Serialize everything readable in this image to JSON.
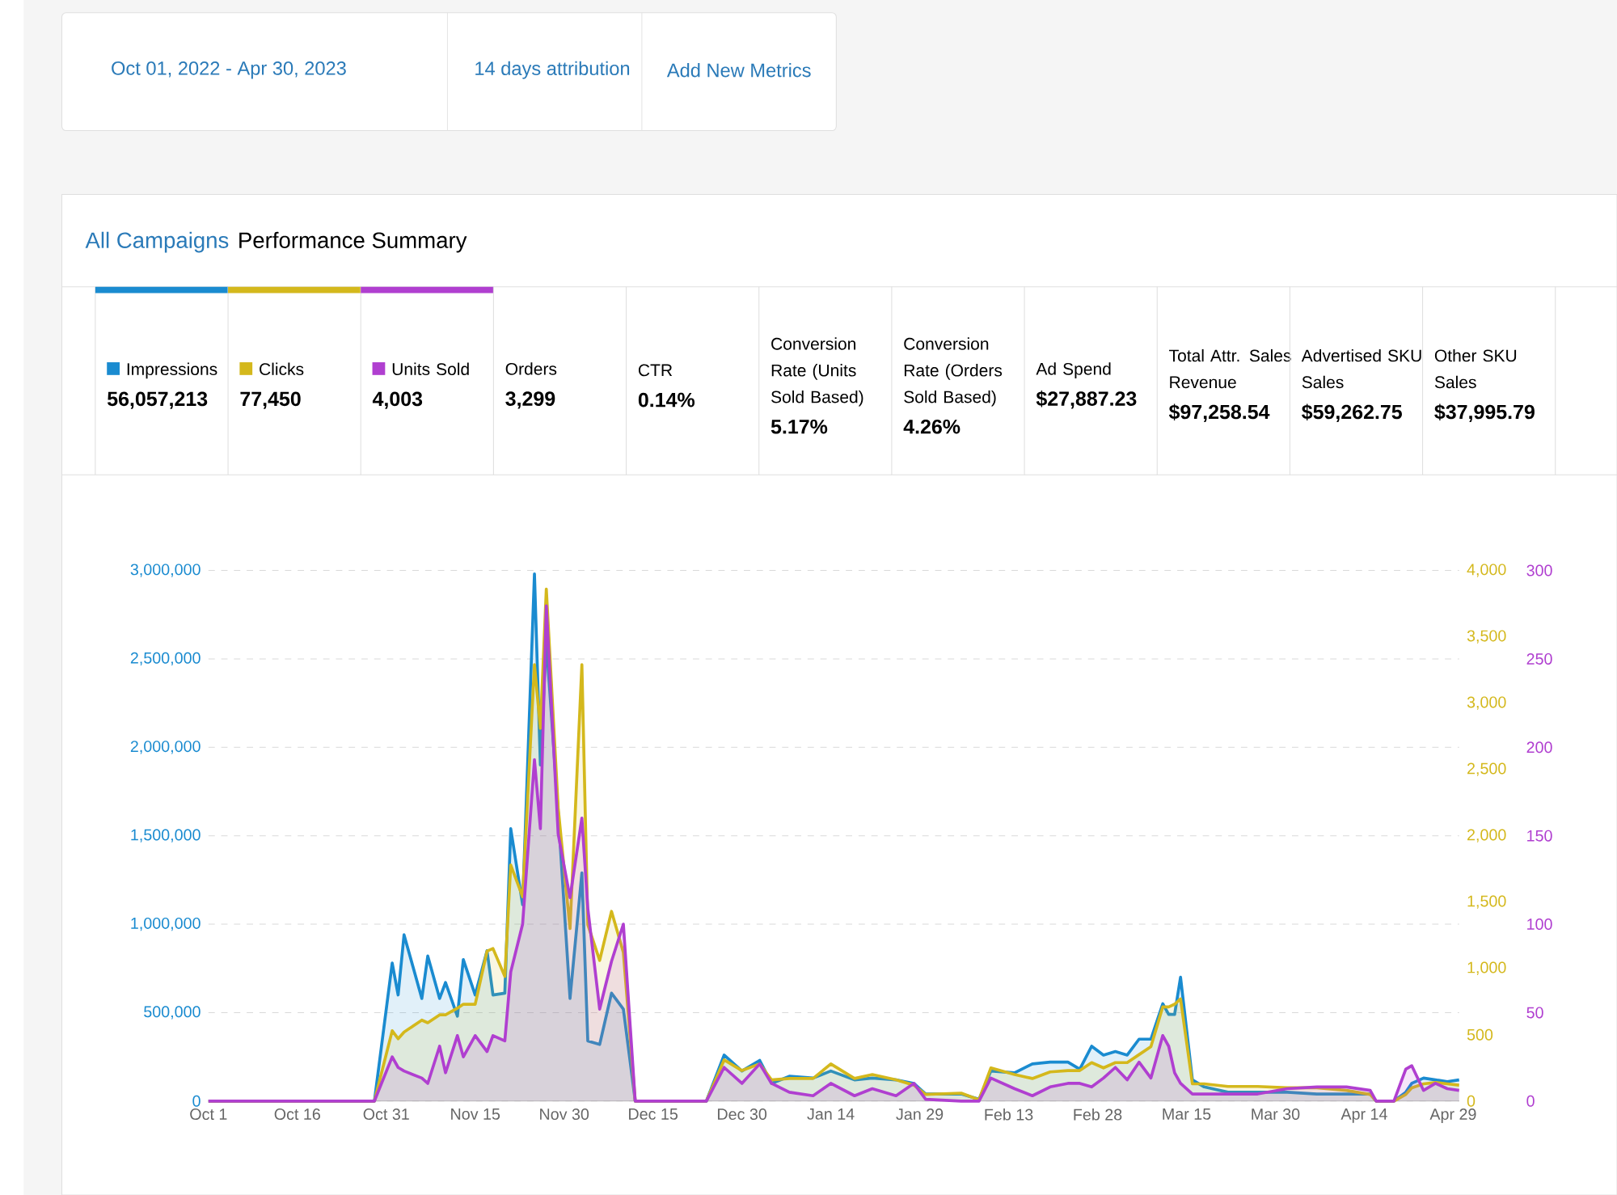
{
  "chart_data": {
    "type": "area",
    "title": "All Campaigns",
    "subtitle": "Performance Summary",
    "annotations": [
      "Oct 01, 2022 - Apr 30, 2023",
      "14 days attribution",
      "Add New Metrics",
      "56,057,213",
      "77,450",
      "4,003",
      "Orders",
      "3,299",
      "CTR",
      "0.14%",
      "Conversion Rate (Units Sold Based)",
      "5.17%",
      "Conversion Rate (Orders Sold Based)",
      "4.26%",
      "Ad Spend",
      "$27,887.23",
      "Total Attr. Sales Revenue",
      "$97,258.54",
      "Advertised SKU Sales",
      "$59,262.75",
      "Other SKU Sales",
      "$37,995.79"
    ],
    "x": [
      "2022-10-01",
      "2022-10-29",
      "2022-11-01",
      "2022-11-02",
      "2022-11-03",
      "2022-11-06",
      "2022-11-07",
      "2022-11-09",
      "2022-11-10",
      "2022-11-12",
      "2022-11-13",
      "2022-11-15",
      "2022-11-17",
      "2022-11-18",
      "2022-11-20",
      "2022-11-21",
      "2022-11-23",
      "2022-11-25",
      "2022-11-26",
      "2022-11-27",
      "2022-11-29",
      "2022-12-01",
      "2022-12-03",
      "2022-12-04",
      "2022-12-06",
      "2022-12-08",
      "2022-12-10",
      "2022-12-12",
      "2022-12-24",
      "2022-12-27",
      "2022-12-30",
      "2023-01-02",
      "2023-01-04",
      "2023-01-07",
      "2023-01-11",
      "2023-01-14",
      "2023-01-18",
      "2023-01-21",
      "2023-01-25",
      "2023-01-28",
      "2023-01-30",
      "2023-02-05",
      "2023-02-08",
      "2023-02-10",
      "2023-02-14",
      "2023-02-17",
      "2023-02-20",
      "2023-02-23",
      "2023-02-25",
      "2023-02-27",
      "2023-03-01",
      "2023-03-03",
      "2023-03-05",
      "2023-03-07",
      "2023-03-09",
      "2023-03-11",
      "2023-03-12",
      "2023-03-13",
      "2023-03-14",
      "2023-03-16",
      "2023-03-18",
      "2023-03-22",
      "2023-03-27",
      "2023-04-01",
      "2023-04-06",
      "2023-04-11",
      "2023-04-15",
      "2023-04-16",
      "2023-04-19",
      "2023-04-21",
      "2023-04-22",
      "2023-04-24",
      "2023-04-26",
      "2023-04-28",
      "2023-04-30"
    ],
    "series": [
      {
        "name": "Impressions",
        "color": "#1a8bd0",
        "values": [
          0,
          0,
          780000,
          600000,
          940000,
          580000,
          820000,
          580000,
          670000,
          480000,
          800000,
          600000,
          850000,
          600000,
          610000,
          1540000,
          1110000,
          2980000,
          1900000,
          2600000,
          1630000,
          580000,
          1290000,
          340000,
          320000,
          610000,
          520000,
          0,
          0,
          260000,
          170000,
          230000,
          100000,
          140000,
          130000,
          170000,
          120000,
          130000,
          120000,
          100000,
          40000,
          40000,
          10000,
          170000,
          160000,
          210000,
          220000,
          220000,
          180000,
          310000,
          260000,
          280000,
          260000,
          350000,
          350000,
          550000,
          490000,
          490000,
          700000,
          120000,
          80000,
          50000,
          50000,
          50000,
          40000,
          40000,
          40000,
          0,
          0,
          50000,
          100000,
          130000,
          120000,
          110000,
          120000
        ]
      },
      {
        "name": "Clicks",
        "color": "#d4b81c",
        "axis": "y2",
        "values": [
          0,
          0,
          530,
          470,
          520,
          610,
          590,
          650,
          650,
          700,
          730,
          730,
          1130,
          1150,
          940,
          1780,
          1540,
          3290,
          2810,
          3860,
          2210,
          1300,
          3290,
          1330,
          1060,
          1430,
          1120,
          0,
          0,
          310,
          230,
          280,
          160,
          170,
          170,
          280,
          170,
          200,
          160,
          120,
          50,
          60,
          10,
          250,
          200,
          170,
          220,
          230,
          230,
          290,
          250,
          290,
          290,
          350,
          410,
          710,
          710,
          730,
          770,
          130,
          130,
          110,
          110,
          100,
          100,
          80,
          50,
          0,
          0,
          50,
          100,
          130,
          140,
          130,
          120
        ]
      },
      {
        "name": "Units Sold",
        "color": "#b03fd0",
        "axis": "y3",
        "values": [
          0,
          0,
          25,
          19,
          17,
          13,
          10,
          31,
          16,
          37,
          25,
          37,
          28,
          37,
          34,
          73,
          100,
          193,
          154,
          280,
          151,
          115,
          160,
          109,
          52,
          79,
          100,
          0,
          0,
          19,
          10,
          21,
          10,
          5,
          3,
          10,
          3,
          7,
          3,
          10,
          1,
          0,
          0,
          13,
          7,
          3,
          8,
          10,
          10,
          8,
          13,
          19,
          12,
          22,
          13,
          37,
          31,
          16,
          10,
          4,
          4,
          4,
          4,
          7,
          8,
          8,
          6,
          0,
          0,
          18,
          20,
          6,
          10,
          7,
          6
        ]
      }
    ],
    "xlim": [
      "2022-10-01",
      "2023-04-30"
    ],
    "xticks": [
      {
        "value": "2022-10-01",
        "label": "Oct 1"
      },
      {
        "value": "2022-10-16",
        "label": "Oct 16"
      },
      {
        "value": "2022-10-31",
        "label": "Oct 31"
      },
      {
        "value": "2022-11-15",
        "label": "Nov 15"
      },
      {
        "value": "2022-11-30",
        "label": "Nov 30"
      },
      {
        "value": "2022-12-15",
        "label": "Dec 15"
      },
      {
        "value": "2022-12-30",
        "label": "Dec 30"
      },
      {
        "value": "2023-01-14",
        "label": "Jan 14"
      },
      {
        "value": "2023-01-29",
        "label": "Jan 29"
      },
      {
        "value": "2023-02-13",
        "label": "Feb 13"
      },
      {
        "value": "2023-02-28",
        "label": "Feb 28"
      },
      {
        "value": "2023-03-15",
        "label": "Mar 15"
      },
      {
        "value": "2023-03-30",
        "label": "Mar 30"
      },
      {
        "value": "2023-04-14",
        "label": "Apr 14"
      },
      {
        "value": "2023-04-29",
        "label": "Apr 29"
      }
    ],
    "ylim": [
      0,
      3000000
    ],
    "yticks": [
      0,
      {
        "value": 500000,
        "label": "500,000"
      },
      {
        "value": 1000000,
        "label": "1,000,000"
      },
      {
        "value": 1500000,
        "label": "1,500,000"
      },
      {
        "value": 2000000,
        "label": "2,000,000"
      },
      {
        "value": 2500000,
        "label": "2,500,000"
      },
      {
        "value": 3000000,
        "label": "3,000,000"
      }
    ],
    "y2lim": [
      0,
      4000
    ],
    "y2ticks": [
      0,
      500,
      {
        "value": 1000,
        "label": "1,000"
      },
      {
        "value": 1500,
        "label": "1,500"
      },
      {
        "value": 2000,
        "label": "2,000"
      },
      {
        "value": 2500,
        "label": "2,500"
      },
      {
        "value": 3000,
        "label": "3,000"
      },
      {
        "value": 3500,
        "label": "3,500"
      },
      {
        "value": 4000,
        "label": "4,000"
      }
    ],
    "y3lim": [
      0,
      300
    ],
    "y3ticks": [
      0,
      50,
      100,
      150,
      200,
      250,
      300
    ],
    "grid": "y",
    "legend": "top"
  }
}
